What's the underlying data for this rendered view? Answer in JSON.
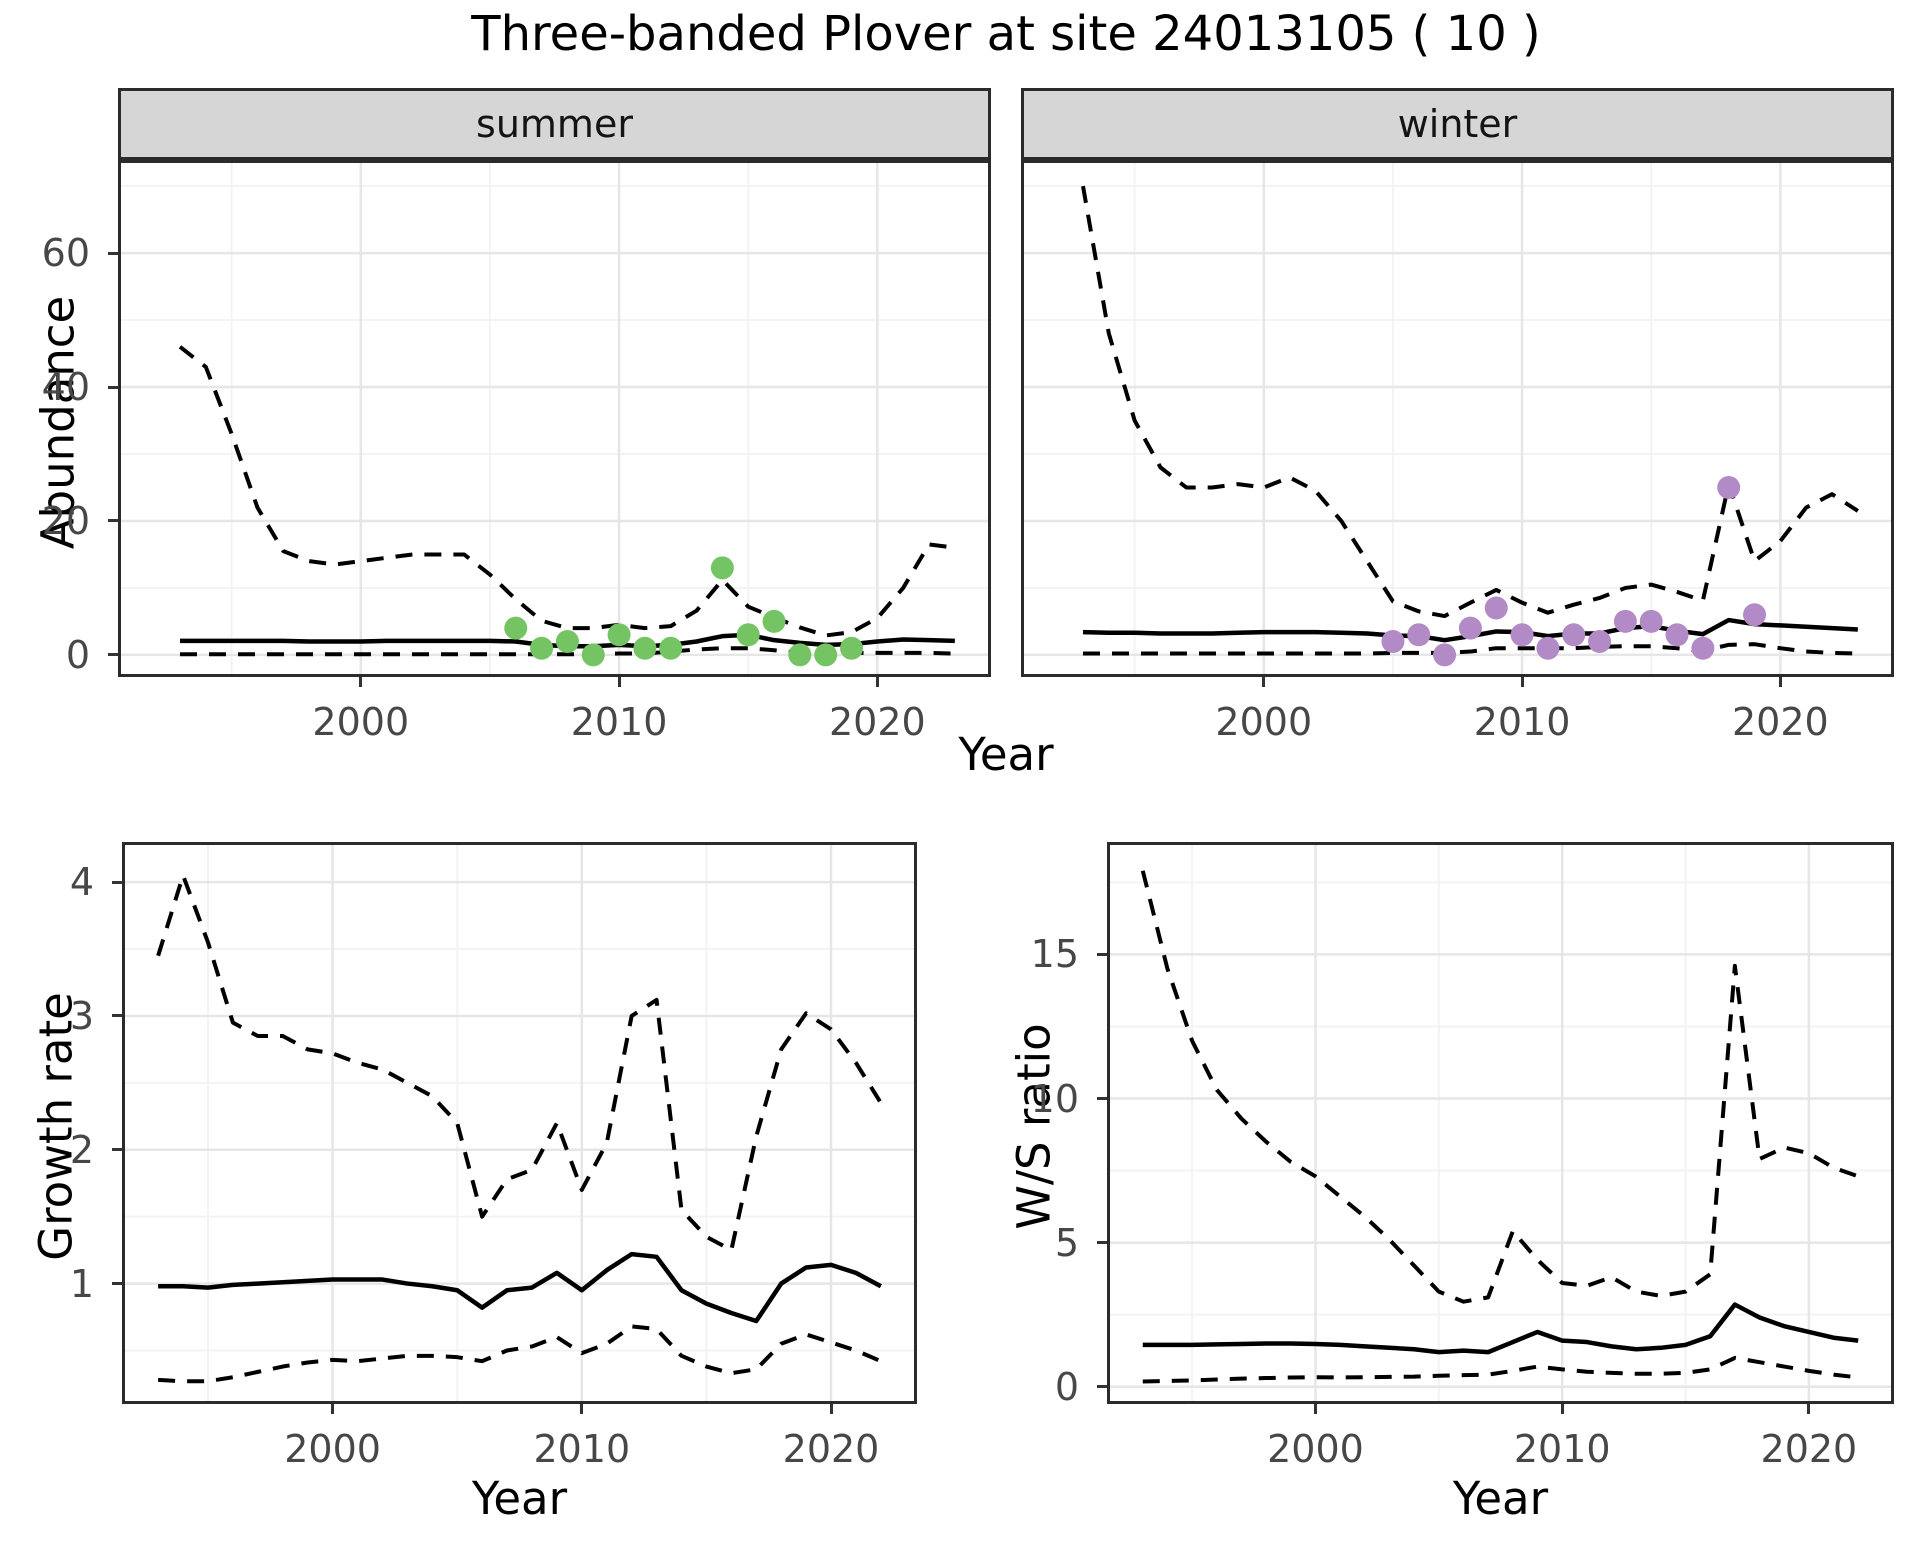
{
  "title": "Three-banded Plover at site 24013105 ( 10 )",
  "shared": {
    "top_xlabel": "Year"
  },
  "colors": {
    "summer_point": "#74C464",
    "winter_point": "#B28BC6",
    "line": "#000000",
    "grid_major": "#E6E6E6",
    "grid_minor": "#F3F3F3",
    "panel_border": "#2B2B2B",
    "strip_bg": "#D6D6D6",
    "tick_text": "#474747"
  },
  "chart_data": [
    {
      "id": "abundance-summer",
      "type": "line",
      "facet_label": "summer",
      "ylabel": "Abundance",
      "xlabel": "Year",
      "xlim": [
        1990.6,
        2024.4
      ],
      "ylim": [
        -3.3,
        73.9
      ],
      "xticks": [
        2000,
        2010,
        2020
      ],
      "xticks_minor": [
        1995,
        2005,
        2015
      ],
      "yticks": [
        0,
        20,
        40,
        60
      ],
      "yticks_minor": [
        10,
        30,
        50,
        70
      ],
      "show_ytick_labels": true,
      "x": [
        1993,
        1994,
        1995,
        1996,
        1997,
        1998,
        1999,
        2000,
        2001,
        2002,
        2003,
        2004,
        2005,
        2006,
        2007,
        2008,
        2009,
        2010,
        2011,
        2012,
        2013,
        2014,
        2015,
        2016,
        2017,
        2018,
        2019,
        2020,
        2021,
        2022,
        2023
      ],
      "series": [
        {
          "name": "upper_95_CI",
          "style": "dashed",
          "values": [
            46,
            43,
            33,
            22,
            15.5,
            14,
            13.5,
            14,
            14.5,
            15,
            15,
            15,
            12,
            8.3,
            5.1,
            4,
            4,
            4.5,
            4,
            4.3,
            6.6,
            11.2,
            7.2,
            5.6,
            4.1,
            2.9,
            3.4,
            5.5,
            10,
            16.5,
            16
          ]
        },
        {
          "name": "median",
          "style": "solid",
          "values": [
            2.1,
            2.1,
            2.1,
            2.1,
            2.1,
            2.0,
            2.0,
            2.0,
            2.1,
            2.1,
            2.1,
            2.1,
            2.1,
            2.0,
            1.5,
            1.3,
            1.3,
            1.5,
            1.3,
            1.5,
            2.0,
            2.8,
            3.0,
            2.2,
            1.8,
            1.5,
            1.6,
            2.0,
            2.3,
            2.2,
            2.1
          ]
        },
        {
          "name": "lower_95_CI",
          "style": "dashed",
          "values": [
            0.1,
            0.1,
            0.1,
            0.1,
            0.1,
            0.1,
            0.1,
            0.1,
            0.1,
            0.1,
            0.1,
            0.1,
            0.1,
            0.1,
            0.1,
            0.1,
            0.1,
            0.2,
            0.2,
            0.5,
            0.8,
            1.0,
            1.0,
            0.7,
            0.3,
            0.2,
            0.3,
            0.3,
            0.3,
            0.3,
            0.2
          ]
        },
        {
          "name": "observed_count",
          "style": "points",
          "color": "#74C464",
          "x": [
            2006,
            2007,
            2008,
            2009,
            2010,
            2011,
            2012,
            2014,
            2015,
            2016,
            2017,
            2018,
            2019
          ],
          "values": [
            4,
            1,
            2,
            0,
            3,
            1,
            1,
            13,
            3,
            5,
            0,
            0,
            1
          ]
        }
      ]
    },
    {
      "id": "abundance-winter",
      "type": "line",
      "facet_label": "winter",
      "ylabel": "",
      "xlabel": "Year",
      "xlim": [
        1990.6,
        2024.4
      ],
      "ylim": [
        -3.3,
        73.9
      ],
      "xticks": [
        2000,
        2010,
        2020
      ],
      "xticks_minor": [
        1995,
        2005,
        2015
      ],
      "yticks": [
        0,
        20,
        40,
        60
      ],
      "yticks_minor": [
        10,
        30,
        50,
        70
      ],
      "show_ytick_labels": false,
      "x": [
        1993,
        1994,
        1995,
        1996,
        1997,
        1998,
        1999,
        2000,
        2001,
        2002,
        2003,
        2004,
        2005,
        2006,
        2007,
        2008,
        2009,
        2010,
        2011,
        2012,
        2013,
        2014,
        2015,
        2016,
        2017,
        2018,
        2019,
        2020,
        2021,
        2022,
        2023
      ],
      "series": [
        {
          "name": "upper_95_CI",
          "style": "dashed",
          "values": [
            70,
            48,
            35,
            28,
            25,
            25,
            25.5,
            25,
            26.5,
            24.5,
            20,
            14,
            8,
            6.5,
            5.8,
            7.8,
            9.7,
            7.8,
            6.3,
            7.5,
            8.5,
            10,
            10.5,
            9.4,
            8.1,
            25.5,
            14,
            17,
            22,
            24,
            21.5
          ]
        },
        {
          "name": "median",
          "style": "solid",
          "values": [
            3.4,
            3.3,
            3.3,
            3.2,
            3.2,
            3.2,
            3.3,
            3.4,
            3.4,
            3.4,
            3.3,
            3.2,
            2.9,
            2.8,
            2.2,
            2.8,
            3.5,
            3.4,
            2.8,
            3.2,
            3.2,
            4.0,
            4.3,
            3.6,
            3.1,
            5.2,
            4.6,
            4.4,
            4.2,
            4.0,
            3.8
          ]
        },
        {
          "name": "lower_95_CI",
          "style": "dashed",
          "values": [
            0.2,
            0.2,
            0.2,
            0.2,
            0.2,
            0.2,
            0.2,
            0.2,
            0.2,
            0.2,
            0.2,
            0.2,
            0.3,
            0.3,
            0.3,
            0.5,
            1.0,
            1.0,
            1.0,
            1.0,
            1.2,
            1.3,
            1.3,
            1.0,
            0.6,
            1.5,
            1.6,
            1.0,
            0.5,
            0.3,
            0.2
          ]
        },
        {
          "name": "observed_count",
          "style": "points",
          "color": "#B28BC6",
          "x": [
            2005,
            2006,
            2007,
            2008,
            2009,
            2010,
            2011,
            2012,
            2013,
            2014,
            2015,
            2016,
            2017,
            2018,
            2019
          ],
          "values": [
            2,
            3,
            0,
            4,
            7,
            3,
            1,
            3,
            2,
            5,
            5,
            3,
            1,
            25,
            6
          ]
        }
      ]
    },
    {
      "id": "growth-rate",
      "type": "line",
      "facet_label": "",
      "ylabel": "Growth rate",
      "xlabel": "Year",
      "xlim": [
        1991.55,
        2023.45
      ],
      "ylim": [
        0.1,
        4.3
      ],
      "xticks": [
        2000,
        2010,
        2020
      ],
      "xticks_minor": [
        1995,
        2005,
        2015
      ],
      "yticks": [
        1,
        2,
        3,
        4
      ],
      "yticks_minor": [
        0.5,
        1.5,
        2.5,
        3.5
      ],
      "show_ytick_labels": true,
      "x": [
        1993,
        1994,
        1995,
        1996,
        1997,
        1998,
        1999,
        2000,
        2001,
        2002,
        2003,
        2004,
        2005,
        2006,
        2007,
        2008,
        2009,
        2010,
        2011,
        2012,
        2013,
        2014,
        2015,
        2016,
        2017,
        2018,
        2019,
        2020,
        2021,
        2022
      ],
      "series": [
        {
          "name": "upper_95_CI",
          "style": "dashed",
          "values": [
            3.45,
            4.05,
            3.55,
            2.95,
            2.85,
            2.85,
            2.75,
            2.72,
            2.65,
            2.6,
            2.5,
            2.4,
            2.2,
            1.5,
            1.78,
            1.85,
            2.2,
            1.7,
            2.05,
            3.0,
            3.12,
            1.55,
            1.35,
            1.25,
            2.1,
            2.75,
            3.02,
            2.9,
            2.65,
            2.35
          ]
        },
        {
          "name": "median",
          "style": "solid",
          "values": [
            0.98,
            0.98,
            0.97,
            0.99,
            1.0,
            1.01,
            1.02,
            1.03,
            1.03,
            1.03,
            1.0,
            0.98,
            0.95,
            0.82,
            0.95,
            0.97,
            1.08,
            0.95,
            1.1,
            1.22,
            1.2,
            0.95,
            0.85,
            0.78,
            0.72,
            1.0,
            1.12,
            1.14,
            1.08,
            0.98
          ]
        },
        {
          "name": "lower_95_CI",
          "style": "dashed",
          "values": [
            0.28,
            0.27,
            0.27,
            0.3,
            0.34,
            0.38,
            0.41,
            0.43,
            0.42,
            0.44,
            0.46,
            0.46,
            0.45,
            0.42,
            0.5,
            0.53,
            0.6,
            0.48,
            0.55,
            0.68,
            0.66,
            0.46,
            0.38,
            0.33,
            0.36,
            0.55,
            0.62,
            0.56,
            0.5,
            0.42
          ]
        }
      ]
    },
    {
      "id": "ws-ratio",
      "type": "line",
      "facet_label": "",
      "ylabel": "W/S ratio",
      "xlabel": "Year",
      "xlim": [
        1991.55,
        2023.45
      ],
      "ylim": [
        -0.6,
        18.9
      ],
      "xticks": [
        2000,
        2010,
        2020
      ],
      "xticks_minor": [
        1995,
        2005,
        2015
      ],
      "yticks": [
        0,
        5,
        10,
        15
      ],
      "yticks_minor": [
        2.5,
        7.5,
        12.5,
        17.5
      ],
      "show_ytick_labels": true,
      "x": [
        1993,
        1994,
        1995,
        1996,
        1997,
        1998,
        1999,
        2000,
        2001,
        2002,
        2003,
        2004,
        2005,
        2006,
        2007,
        2008,
        2009,
        2010,
        2011,
        2012,
        2013,
        2014,
        2015,
        2016,
        2017,
        2018,
        2019,
        2020,
        2021,
        2022
      ],
      "series": [
        {
          "name": "upper_95_CI",
          "style": "dashed",
          "values": [
            17.9,
            14.5,
            12.0,
            10.3,
            9.3,
            8.5,
            7.8,
            7.3,
            6.6,
            5.9,
            5.1,
            4.2,
            3.3,
            2.95,
            3.1,
            5.4,
            4.4,
            3.6,
            3.5,
            3.8,
            3.3,
            3.15,
            3.3,
            3.9,
            14.6,
            7.9,
            8.3,
            8.1,
            7.6,
            7.3
          ]
        },
        {
          "name": "median",
          "style": "solid",
          "values": [
            1.45,
            1.45,
            1.45,
            1.47,
            1.48,
            1.5,
            1.5,
            1.48,
            1.45,
            1.4,
            1.35,
            1.3,
            1.2,
            1.25,
            1.2,
            1.55,
            1.9,
            1.6,
            1.55,
            1.4,
            1.3,
            1.35,
            1.45,
            1.75,
            2.85,
            2.4,
            2.1,
            1.9,
            1.7,
            1.6
          ]
        },
        {
          "name": "lower_95_CI",
          "style": "dashed",
          "values": [
            0.18,
            0.2,
            0.22,
            0.25,
            0.28,
            0.3,
            0.32,
            0.33,
            0.32,
            0.33,
            0.34,
            0.35,
            0.38,
            0.4,
            0.42,
            0.55,
            0.7,
            0.6,
            0.52,
            0.48,
            0.45,
            0.45,
            0.48,
            0.6,
            1.0,
            0.85,
            0.7,
            0.55,
            0.42,
            0.32
          ]
        }
      ]
    }
  ]
}
